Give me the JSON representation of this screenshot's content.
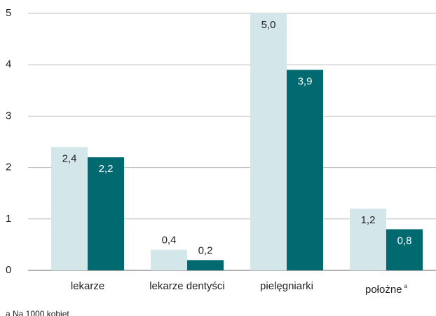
{
  "chart_data": {
    "type": "bar",
    "categories": [
      "lekarze",
      "lekarze dentyści",
      "pielęgniarki",
      "położne"
    ],
    "category_markers": [
      null,
      null,
      null,
      "a"
    ],
    "series": [
      {
        "color": "#d3e6ea",
        "label_color": "#222222",
        "values": [
          2.4,
          0.4,
          5.0,
          1.2
        ],
        "value_labels": [
          "2,4",
          "0,4",
          "5,0",
          "1,2"
        ]
      },
      {
        "color": "#006a70",
        "label_color": "#ffffff",
        "values": [
          2.2,
          0.2,
          3.9,
          0.8
        ],
        "value_labels": [
          "2,2",
          "0,2",
          "3,9",
          "0,8"
        ]
      }
    ],
    "ylim": [
      0,
      5
    ],
    "yticks": [
      0,
      1,
      2,
      3,
      4,
      5
    ],
    "grid": true,
    "footnote": "a Na 1000 kobiet"
  }
}
